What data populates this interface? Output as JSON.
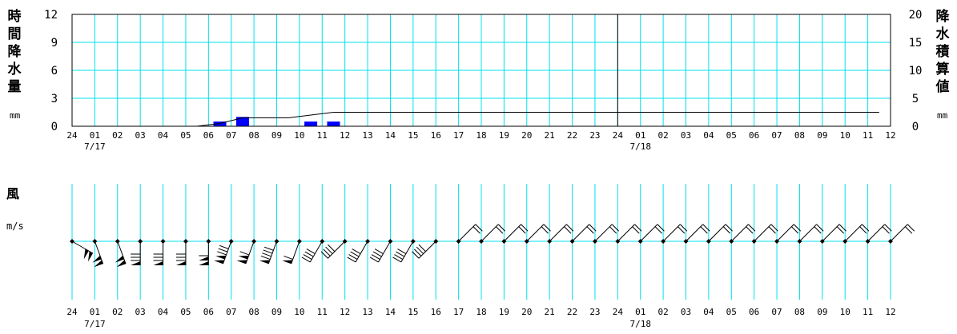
{
  "labels": {
    "hourly_precip": "時間降水量",
    "hourly_precip_unit": "mm",
    "cumulative_precip": "降水積算値",
    "cumulative_precip_unit": "mm",
    "wind": "風",
    "wind_unit": "m/s"
  },
  "chart_data": [
    {
      "type": "bar",
      "name": "hourly-precipitation",
      "x_ticks": [
        "24",
        "01",
        "02",
        "03",
        "04",
        "05",
        "06",
        "07",
        "08",
        "09",
        "10",
        "11",
        "12",
        "13",
        "14",
        "15",
        "16",
        "17",
        "18",
        "19",
        "20",
        "21",
        "22",
        "23",
        "24",
        "01",
        "02",
        "03",
        "04",
        "05",
        "06",
        "07",
        "08",
        "09",
        "10",
        "11",
        "12"
      ],
      "date_labels": [
        {
          "tick_index": 1,
          "text": "7/17"
        },
        {
          "tick_index": 25,
          "text": "7/18"
        }
      ],
      "y_ticks": [
        "0",
        "3",
        "6",
        "9",
        "12"
      ],
      "ylim": [
        0,
        12
      ],
      "y2_ticks": [
        "0",
        "5",
        "10",
        "15",
        "20"
      ],
      "y2lim": [
        0,
        20
      ],
      "values": [
        0,
        0,
        0,
        0,
        0,
        0,
        0.5,
        1.0,
        0,
        0,
        0.5,
        0.5,
        0,
        0,
        0,
        0,
        0,
        0,
        0,
        0,
        0,
        0,
        0,
        0,
        0,
        0,
        0,
        0,
        0,
        0,
        0,
        0,
        0,
        0,
        0,
        0
      ],
      "cumulative": [
        0,
        0,
        0,
        0,
        0,
        0,
        0.5,
        1.5,
        1.5,
        1.5,
        2.0,
        2.5,
        2.5,
        2.5,
        2.5,
        2.5,
        2.5,
        2.5,
        2.5,
        2.5,
        2.5,
        2.5,
        2.5,
        2.5,
        2.5,
        2.5,
        2.5,
        2.5,
        2.5,
        2.5,
        2.5,
        2.5,
        2.5,
        2.5,
        2.5,
        2.5
      ],
      "day_boundary_tick_index": 24,
      "grid": true
    },
    {
      "type": "wind-barbs",
      "name": "wind",
      "x_ticks": [
        "24",
        "01",
        "02",
        "03",
        "04",
        "05",
        "06",
        "07",
        "08",
        "09",
        "10",
        "11",
        "12",
        "13",
        "14",
        "15",
        "16",
        "17",
        "18",
        "19",
        "20",
        "21",
        "22",
        "23",
        "24",
        "01",
        "02",
        "03",
        "04",
        "05",
        "06",
        "07",
        "08",
        "09",
        "10",
        "11",
        "12"
      ],
      "date_labels": [
        {
          "tick_index": 1,
          "text": "7/17"
        },
        {
          "tick_index": 25,
          "text": "7/18"
        }
      ],
      "direction_deg": [
        300,
        340,
        340,
        0,
        0,
        0,
        0,
        20,
        20,
        20,
        20,
        30,
        45,
        30,
        30,
        30,
        45,
        225,
        225,
        225,
        225,
        225,
        225,
        225,
        225,
        225,
        225,
        225,
        225,
        225,
        225,
        225,
        225,
        225,
        225,
        225,
        225
      ],
      "speed_ms": [
        20,
        21,
        21,
        16,
        17,
        17,
        23,
        27,
        23,
        19,
        12,
        8,
        8,
        8,
        8,
        8,
        8,
        5,
        5,
        5,
        5,
        5,
        5,
        5,
        5,
        5,
        5,
        5,
        5,
        5,
        5,
        5,
        5,
        5,
        5,
        5,
        5
      ]
    }
  ]
}
